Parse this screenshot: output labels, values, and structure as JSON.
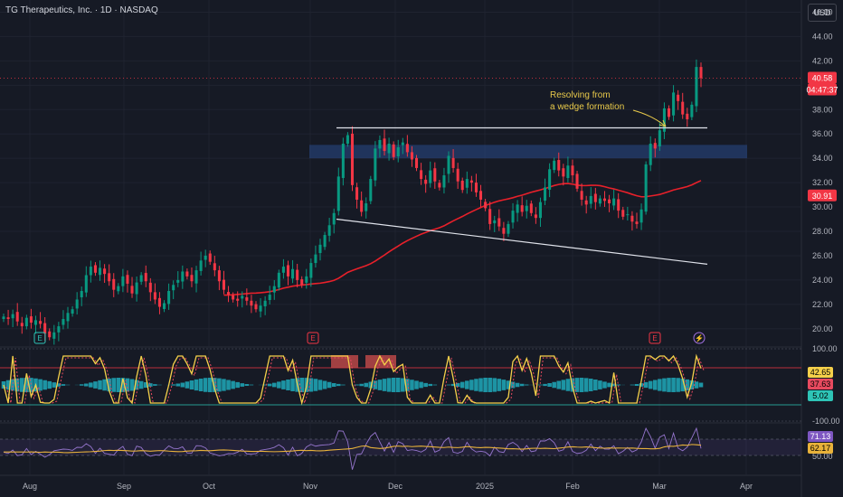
{
  "header": {
    "title": "TG Therapeutics, Inc. · 1D · NASDAQ",
    "currency": "USD"
  },
  "annotation": {
    "line1": "Resolving from",
    "line2": "a wedge formation"
  },
  "events": [
    "E",
    "E",
    "E",
    "⚡"
  ],
  "colors": {
    "bg": "#161a25",
    "up": "#089981",
    "down": "#f23645",
    "ma": "#e8202a",
    "annotation": "#e8c94a",
    "zone": "#2a4a8a"
  },
  "chart_data": [
    {
      "type": "candlestick",
      "ylim": [
        18.5,
        47
      ],
      "yticks": [
        20,
        22,
        24,
        26,
        28,
        30,
        32,
        34,
        36,
        38,
        40,
        42,
        44,
        46
      ],
      "xticks": [
        "Aug",
        "Sep",
        "Oct",
        "Nov",
        "Dec",
        "2025",
        "Feb",
        "Mar",
        "Apr"
      ],
      "closes": [
        21.0,
        20.8,
        21.2,
        20.6,
        20.2,
        20.9,
        20.5,
        20.7,
        20.4,
        19.6,
        19.3,
        19.7,
        20.2,
        20.8,
        21.3,
        21.6,
        22.4,
        23.1,
        24.4,
        25.1,
        24.6,
        25.0,
        24.5,
        23.9,
        23.2,
        23.5,
        24.3,
        23.7,
        22.9,
        23.8,
        24.4,
        23.9,
        23.0,
        22.4,
        21.8,
        22.1,
        23.1,
        23.6,
        24.0,
        24.7,
        24.3,
        23.9,
        24.8,
        25.6,
        26.0,
        25.5,
        24.8,
        23.9,
        23.2,
        22.8,
        22.4,
        22.3,
        22.7,
        22.3,
        21.9,
        21.6,
        21.9,
        22.3,
        22.8,
        23.5,
        24.6,
        25.1,
        24.3,
        24.9,
        24.0,
        23.6,
        24.3,
        25.4,
        26.1,
        26.9,
        27.7,
        28.5,
        29.5,
        32.5,
        35.2,
        35.9,
        31.8,
        30.6,
        29.6,
        30.3,
        32.3,
        34.8,
        35.5,
        34.6,
        35.2,
        34.1,
        34.9,
        35.3,
        34.5,
        33.9,
        33.2,
        32.3,
        31.9,
        33.0,
        32.1,
        31.6,
        32.6,
        34.2,
        33.2,
        32.1,
        31.4,
        32.3,
        32.0,
        31.2,
        30.6,
        29.9,
        28.6,
        28.9,
        28.4,
        27.8,
        28.6,
        29.7,
        30.2,
        29.6,
        30.1,
        29.5,
        29.1,
        30.4,
        31.6,
        33.1,
        33.8,
        33.0,
        32.5,
        33.4,
        32.6,
        31.5,
        30.6,
        30.2,
        30.9,
        30.4,
        30.7,
        30.5,
        30.3,
        30.7,
        29.7,
        29.2,
        29.4,
        28.8,
        28.6,
        29.8,
        33.5,
        35.2,
        34.8,
        36.3,
        38.1,
        37.4,
        39.4,
        38.7,
        37.6,
        37.2,
        38.4,
        41.5,
        40.58
      ],
      "ma_last": 30.91,
      "last_price": "40.58",
      "countdown": "04:47:37",
      "ma_label": "30.91",
      "zone": [
        34.0,
        35.1
      ],
      "resistance": 36.5,
      "support_start": 29.0,
      "support_end": 25.3
    },
    {
      "type": "line",
      "name": "stochastic-oscillator",
      "ylim": [
        -100,
        100
      ],
      "yticks": [
        "100.00",
        "-100.00"
      ],
      "labels": [
        "42.65",
        "37.63",
        "5.02"
      ]
    },
    {
      "type": "line",
      "name": "rsi",
      "yticks": [
        "50.00"
      ],
      "labels": [
        "71.13",
        "62.17"
      ]
    }
  ]
}
